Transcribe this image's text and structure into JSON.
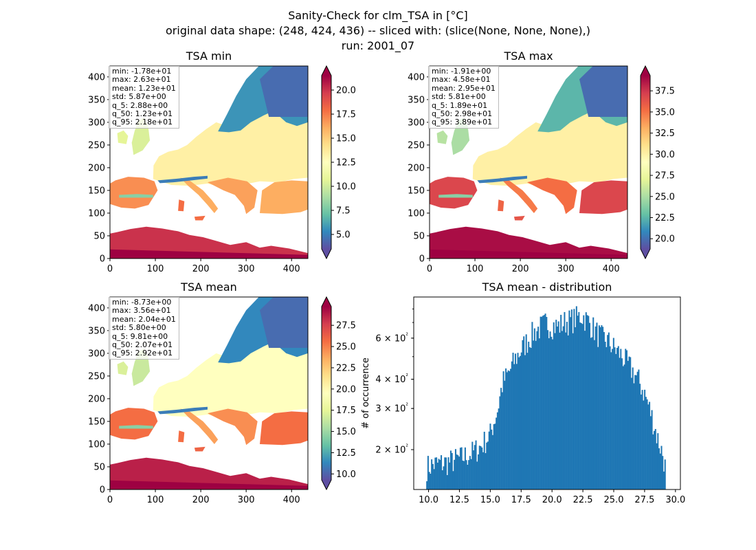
{
  "figure": {
    "title_line1": "Sanity-Check for clm_TSA in [°C]",
    "title_line2": "original data shape: (248, 424, 436) -- sliced with: (slice(None, None, None),)",
    "title_line3": "run: 2001_07"
  },
  "colors": {
    "spectral_r": [
      "#5e4fa2",
      "#3288bd",
      "#66c2a5",
      "#abdda4",
      "#e6f598",
      "#ffffbf",
      "#fee08b",
      "#fdae61",
      "#f46d43",
      "#d53e4f",
      "#9e0142"
    ],
    "hist_bar": "#1f77b4"
  },
  "chart_data": [
    {
      "type": "heatmap",
      "title": "TSA min",
      "xlim": [
        0,
        436
      ],
      "ylim": [
        0,
        424
      ],
      "xticks": [
        "0",
        "100",
        "200",
        "300",
        "400"
      ],
      "yticks": [
        "0",
        "50",
        "100",
        "150",
        "200",
        "250",
        "300",
        "350",
        "400"
      ],
      "colorbar": {
        "range": [
          3.5,
          21.5
        ],
        "ticks": [
          "5.0",
          "7.5",
          "10.0",
          "12.5",
          "15.0",
          "17.5",
          "20.0"
        ],
        "extend": "both"
      },
      "stats": [
        "min: -1.78e+01",
        "max: 2.63e+01",
        "mean: 1.23e+01",
        "std: 5.87e+00",
        "q_5: 2.88e+00",
        "q_50: 1.23e+01",
        "q_95: 2.18e+01"
      ]
    },
    {
      "type": "heatmap",
      "title": "TSA max",
      "xlim": [
        0,
        436
      ],
      "ylim": [
        0,
        424
      ],
      "xticks": [
        "0",
        "100",
        "200",
        "300",
        "400"
      ],
      "yticks": [
        "0",
        "50",
        "100",
        "150",
        "200",
        "250",
        "300",
        "350",
        "400"
      ],
      "colorbar": {
        "range": [
          18.8,
          39.3
        ],
        "ticks": [
          "20.0",
          "22.5",
          "25.0",
          "27.5",
          "30.0",
          "32.5",
          "35.0",
          "37.5"
        ],
        "extend": "both"
      },
      "stats": [
        "min: -1.91e+00",
        "max: 4.58e+01",
        "mean: 2.95e+01",
        "std: 5.81e+00",
        "q_5: 1.89e+01",
        "q_50: 2.98e+01",
        "q_95: 3.89e+01"
      ]
    },
    {
      "type": "heatmap",
      "title": "TSA mean",
      "xlim": [
        0,
        436
      ],
      "ylim": [
        0,
        424
      ],
      "xticks": [
        "0",
        "100",
        "200",
        "300",
        "400"
      ],
      "yticks": [
        "0",
        "50",
        "100",
        "150",
        "200",
        "250",
        "300",
        "350",
        "400"
      ],
      "colorbar": {
        "range": [
          9.3,
          29.7
        ],
        "ticks": [
          "10.0",
          "12.5",
          "15.0",
          "17.5",
          "20.0",
          "22.5",
          "25.0",
          "27.5"
        ],
        "extend": "both"
      },
      "stats": [
        "min: -8.73e+00",
        "max: 3.56e+01",
        "mean: 2.04e+01",
        "std: 5.80e+00",
        "q_5: 9.81e+00",
        "q_50: 2.07e+01",
        "q_95: 2.92e+01"
      ]
    },
    {
      "type": "bar",
      "title": "TSA mean - distribution",
      "ylabel": "# of occurrence",
      "yscale": "log",
      "xlim": [
        8.8,
        30.4
      ],
      "ylim": [
        135,
        900
      ],
      "xticks": [
        "10.0",
        "12.5",
        "15.0",
        "17.5",
        "20.0",
        "22.5",
        "25.0",
        "27.5",
        "30.0"
      ],
      "yticks": [
        {
          "value": 200,
          "label": "2 × 10²"
        },
        {
          "value": 300,
          "label": "3 × 10²"
        },
        {
          "value": 400,
          "label": "4 × 10²"
        },
        {
          "value": 600,
          "label": "6 × 10²"
        }
      ],
      "bin_range": [
        9.81,
        29.2
      ],
      "envelope": [
        [
          9.81,
          170
        ],
        [
          10.5,
          175
        ],
        [
          11.5,
          178
        ],
        [
          12.5,
          185
        ],
        [
          13.5,
          195
        ],
        [
          14.3,
          210
        ],
        [
          15.0,
          235
        ],
        [
          15.6,
          300
        ],
        [
          16.0,
          390
        ],
        [
          16.5,
          430
        ],
        [
          17.0,
          490
        ],
        [
          17.5,
          540
        ],
        [
          18.0,
          590
        ],
        [
          18.5,
          640
        ],
        [
          19.0,
          670
        ],
        [
          19.5,
          700
        ],
        [
          20.0,
          690
        ],
        [
          20.5,
          680
        ],
        [
          21.0,
          710
        ],
        [
          21.5,
          720
        ],
        [
          22.0,
          740
        ],
        [
          22.4,
          760
        ],
        [
          23.0,
          710
        ],
        [
          23.5,
          650
        ],
        [
          24.0,
          610
        ],
        [
          24.5,
          590
        ],
        [
          25.0,
          550
        ],
        [
          25.5,
          520
        ],
        [
          26.0,
          480
        ],
        [
          26.5,
          440
        ],
        [
          27.0,
          400
        ],
        [
          27.5,
          350
        ],
        [
          28.0,
          290
        ],
        [
          28.5,
          230
        ],
        [
          29.0,
          190
        ],
        [
          29.2,
          165
        ]
      ]
    }
  ]
}
